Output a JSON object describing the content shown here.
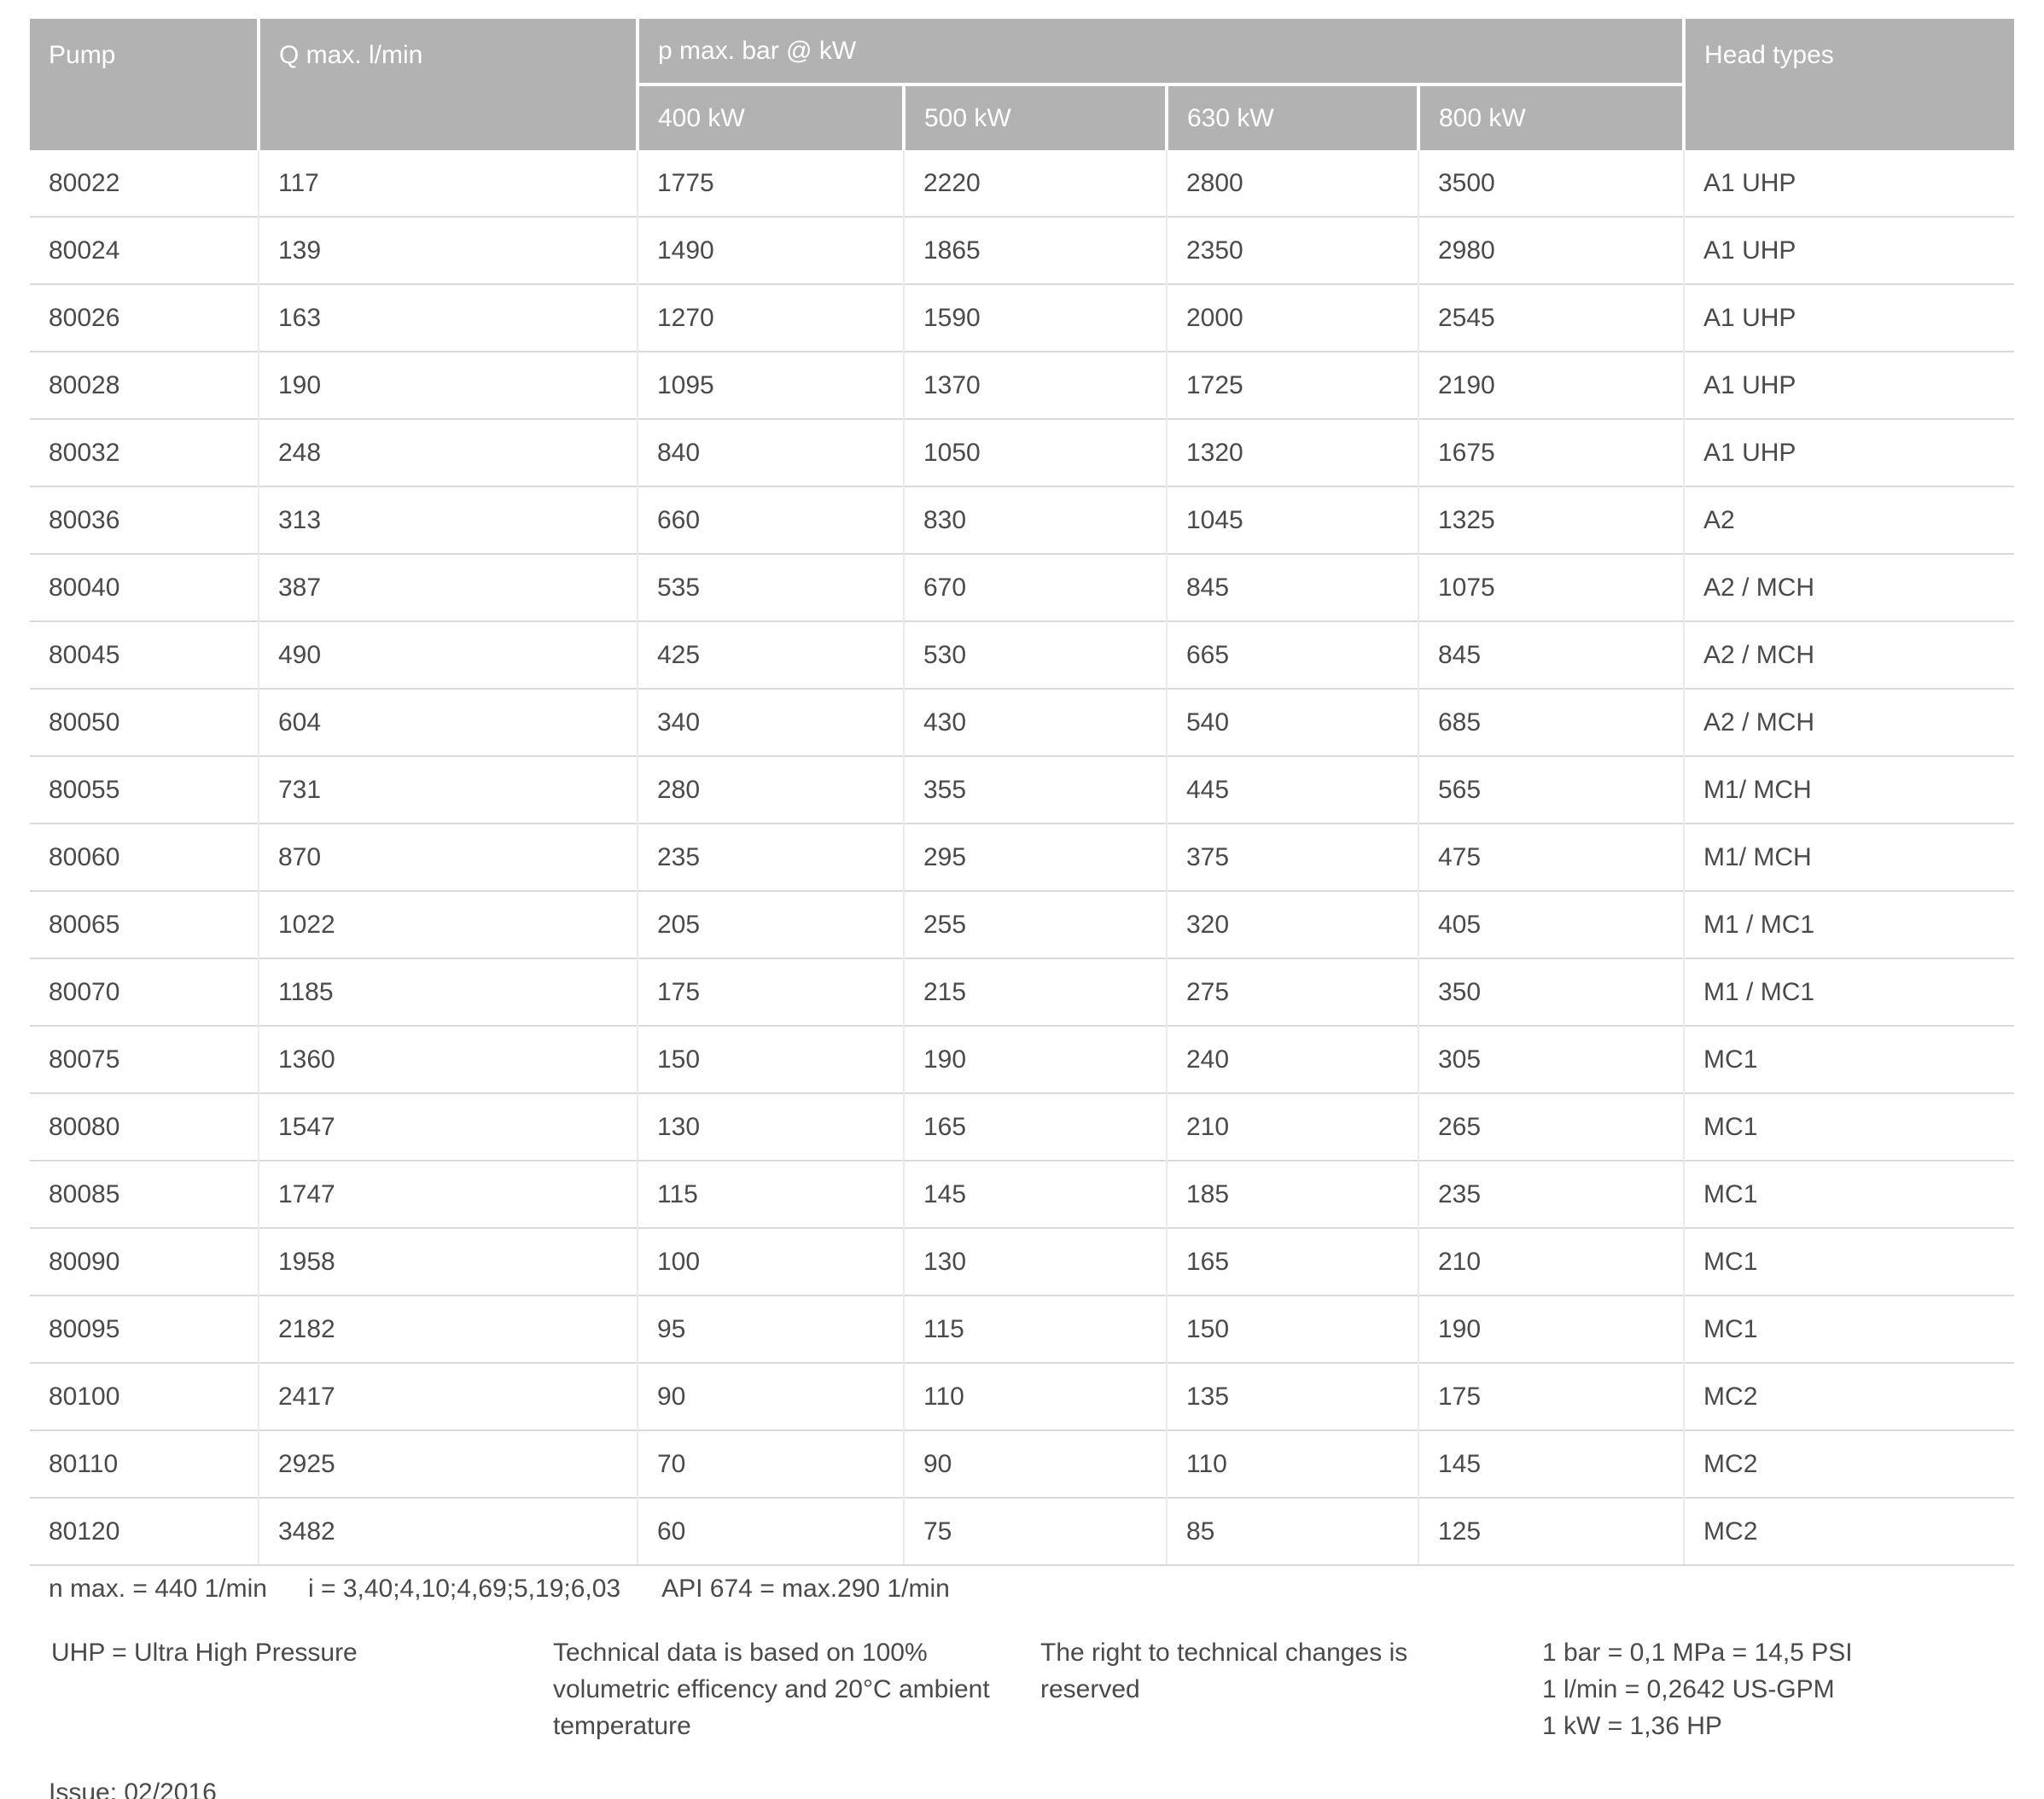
{
  "table": {
    "columns": {
      "pump": "Pump",
      "q_max": "Q max. l/min",
      "p_group": "p max. bar @ kW",
      "kw_400": "400 kW",
      "kw_500": "500 kW",
      "kw_630": "630 kW",
      "kw_800": "800 kW",
      "head_types": "Head types"
    },
    "rows": [
      {
        "pump": "80022",
        "q_max": "117",
        "kw_400": "1775",
        "kw_500": "2220",
        "kw_630": "2800",
        "kw_800": "3500",
        "head_types": "A1 UHP"
      },
      {
        "pump": "80024",
        "q_max": "139",
        "kw_400": "1490",
        "kw_500": "1865",
        "kw_630": "2350",
        "kw_800": "2980",
        "head_types": "A1 UHP"
      },
      {
        "pump": "80026",
        "q_max": "163",
        "kw_400": "1270",
        "kw_500": "1590",
        "kw_630": "2000",
        "kw_800": "2545",
        "head_types": "A1 UHP"
      },
      {
        "pump": "80028",
        "q_max": "190",
        "kw_400": "1095",
        "kw_500": "1370",
        "kw_630": "1725",
        "kw_800": "2190",
        "head_types": "A1 UHP"
      },
      {
        "pump": "80032",
        "q_max": "248",
        "kw_400": "840",
        "kw_500": "1050",
        "kw_630": "1320",
        "kw_800": "1675",
        "head_types": "A1 UHP"
      },
      {
        "pump": "80036",
        "q_max": "313",
        "kw_400": "660",
        "kw_500": "830",
        "kw_630": "1045",
        "kw_800": "1325",
        "head_types": "A2"
      },
      {
        "pump": "80040",
        "q_max": "387",
        "kw_400": "535",
        "kw_500": "670",
        "kw_630": "845",
        "kw_800": "1075",
        "head_types": "A2 / MCH"
      },
      {
        "pump": "80045",
        "q_max": "490",
        "kw_400": "425",
        "kw_500": "530",
        "kw_630": "665",
        "kw_800": "845",
        "head_types": "A2 / MCH"
      },
      {
        "pump": "80050",
        "q_max": "604",
        "kw_400": "340",
        "kw_500": "430",
        "kw_630": "540",
        "kw_800": "685",
        "head_types": "A2 / MCH"
      },
      {
        "pump": "80055",
        "q_max": "731",
        "kw_400": "280",
        "kw_500": "355",
        "kw_630": "445",
        "kw_800": "565",
        "head_types": "M1/ MCH"
      },
      {
        "pump": "80060",
        "q_max": "870",
        "kw_400": "235",
        "kw_500": "295",
        "kw_630": "375",
        "kw_800": "475",
        "head_types": "M1/ MCH"
      },
      {
        "pump": "80065",
        "q_max": "1022",
        "kw_400": "205",
        "kw_500": "255",
        "kw_630": "320",
        "kw_800": "405",
        "head_types": "M1 / MC1"
      },
      {
        "pump": "80070",
        "q_max": "1185",
        "kw_400": "175",
        "kw_500": "215",
        "kw_630": "275",
        "kw_800": "350",
        "head_types": "M1 / MC1"
      },
      {
        "pump": "80075",
        "q_max": "1360",
        "kw_400": "150",
        "kw_500": "190",
        "kw_630": "240",
        "kw_800": "305",
        "head_types": "MC1"
      },
      {
        "pump": "80080",
        "q_max": "1547",
        "kw_400": "130",
        "kw_500": "165",
        "kw_630": "210",
        "kw_800": "265",
        "head_types": "MC1"
      },
      {
        "pump": "80085",
        "q_max": "1747",
        "kw_400": "115",
        "kw_500": "145",
        "kw_630": "185",
        "kw_800": "235",
        "head_types": "MC1"
      },
      {
        "pump": "80090",
        "q_max": "1958",
        "kw_400": "100",
        "kw_500": "130",
        "kw_630": "165",
        "kw_800": "210",
        "head_types": "MC1"
      },
      {
        "pump": "80095",
        "q_max": "2182",
        "kw_400": "95",
        "kw_500": "115",
        "kw_630": "150",
        "kw_800": "190",
        "head_types": "MC1"
      },
      {
        "pump": "80100",
        "q_max": "2417",
        "kw_400": "90",
        "kw_500": "110",
        "kw_630": "135",
        "kw_800": "175",
        "head_types": "MC2"
      },
      {
        "pump": "80110",
        "q_max": "2925",
        "kw_400": "70",
        "kw_500": "90",
        "kw_630": "110",
        "kw_800": "145",
        "head_types": "MC2"
      },
      {
        "pump": "80120",
        "q_max": "3482",
        "kw_400": "60",
        "kw_500": "75",
        "kw_630": "85",
        "kw_800": "125",
        "head_types": "MC2"
      }
    ]
  },
  "footnotes": {
    "n_max": "n max. = 440 1/min",
    "i_ratios": "i = 3,40;4,10;4,69;5,19;6,03",
    "api": "API 674 = max.290 1/min",
    "uhp": "UHP = Ultra High Pressure",
    "technical_basis": "Technical data is based on 100% volumetric efficency and 20°C ambient temperature",
    "rights": "The right to technical changes is reserved",
    "conversions": [
      "1 bar = 0,1 MPa = 14,5 PSI",
      "1 l/min = 0,2642 US-GPM",
      "1 kW = 1,36 HP"
    ],
    "issue": "Issue: 02/2016"
  },
  "colors": {
    "header_bg": "#b2b2b2",
    "header_text": "#ffffff",
    "body_text": "#4a4a4c"
  }
}
